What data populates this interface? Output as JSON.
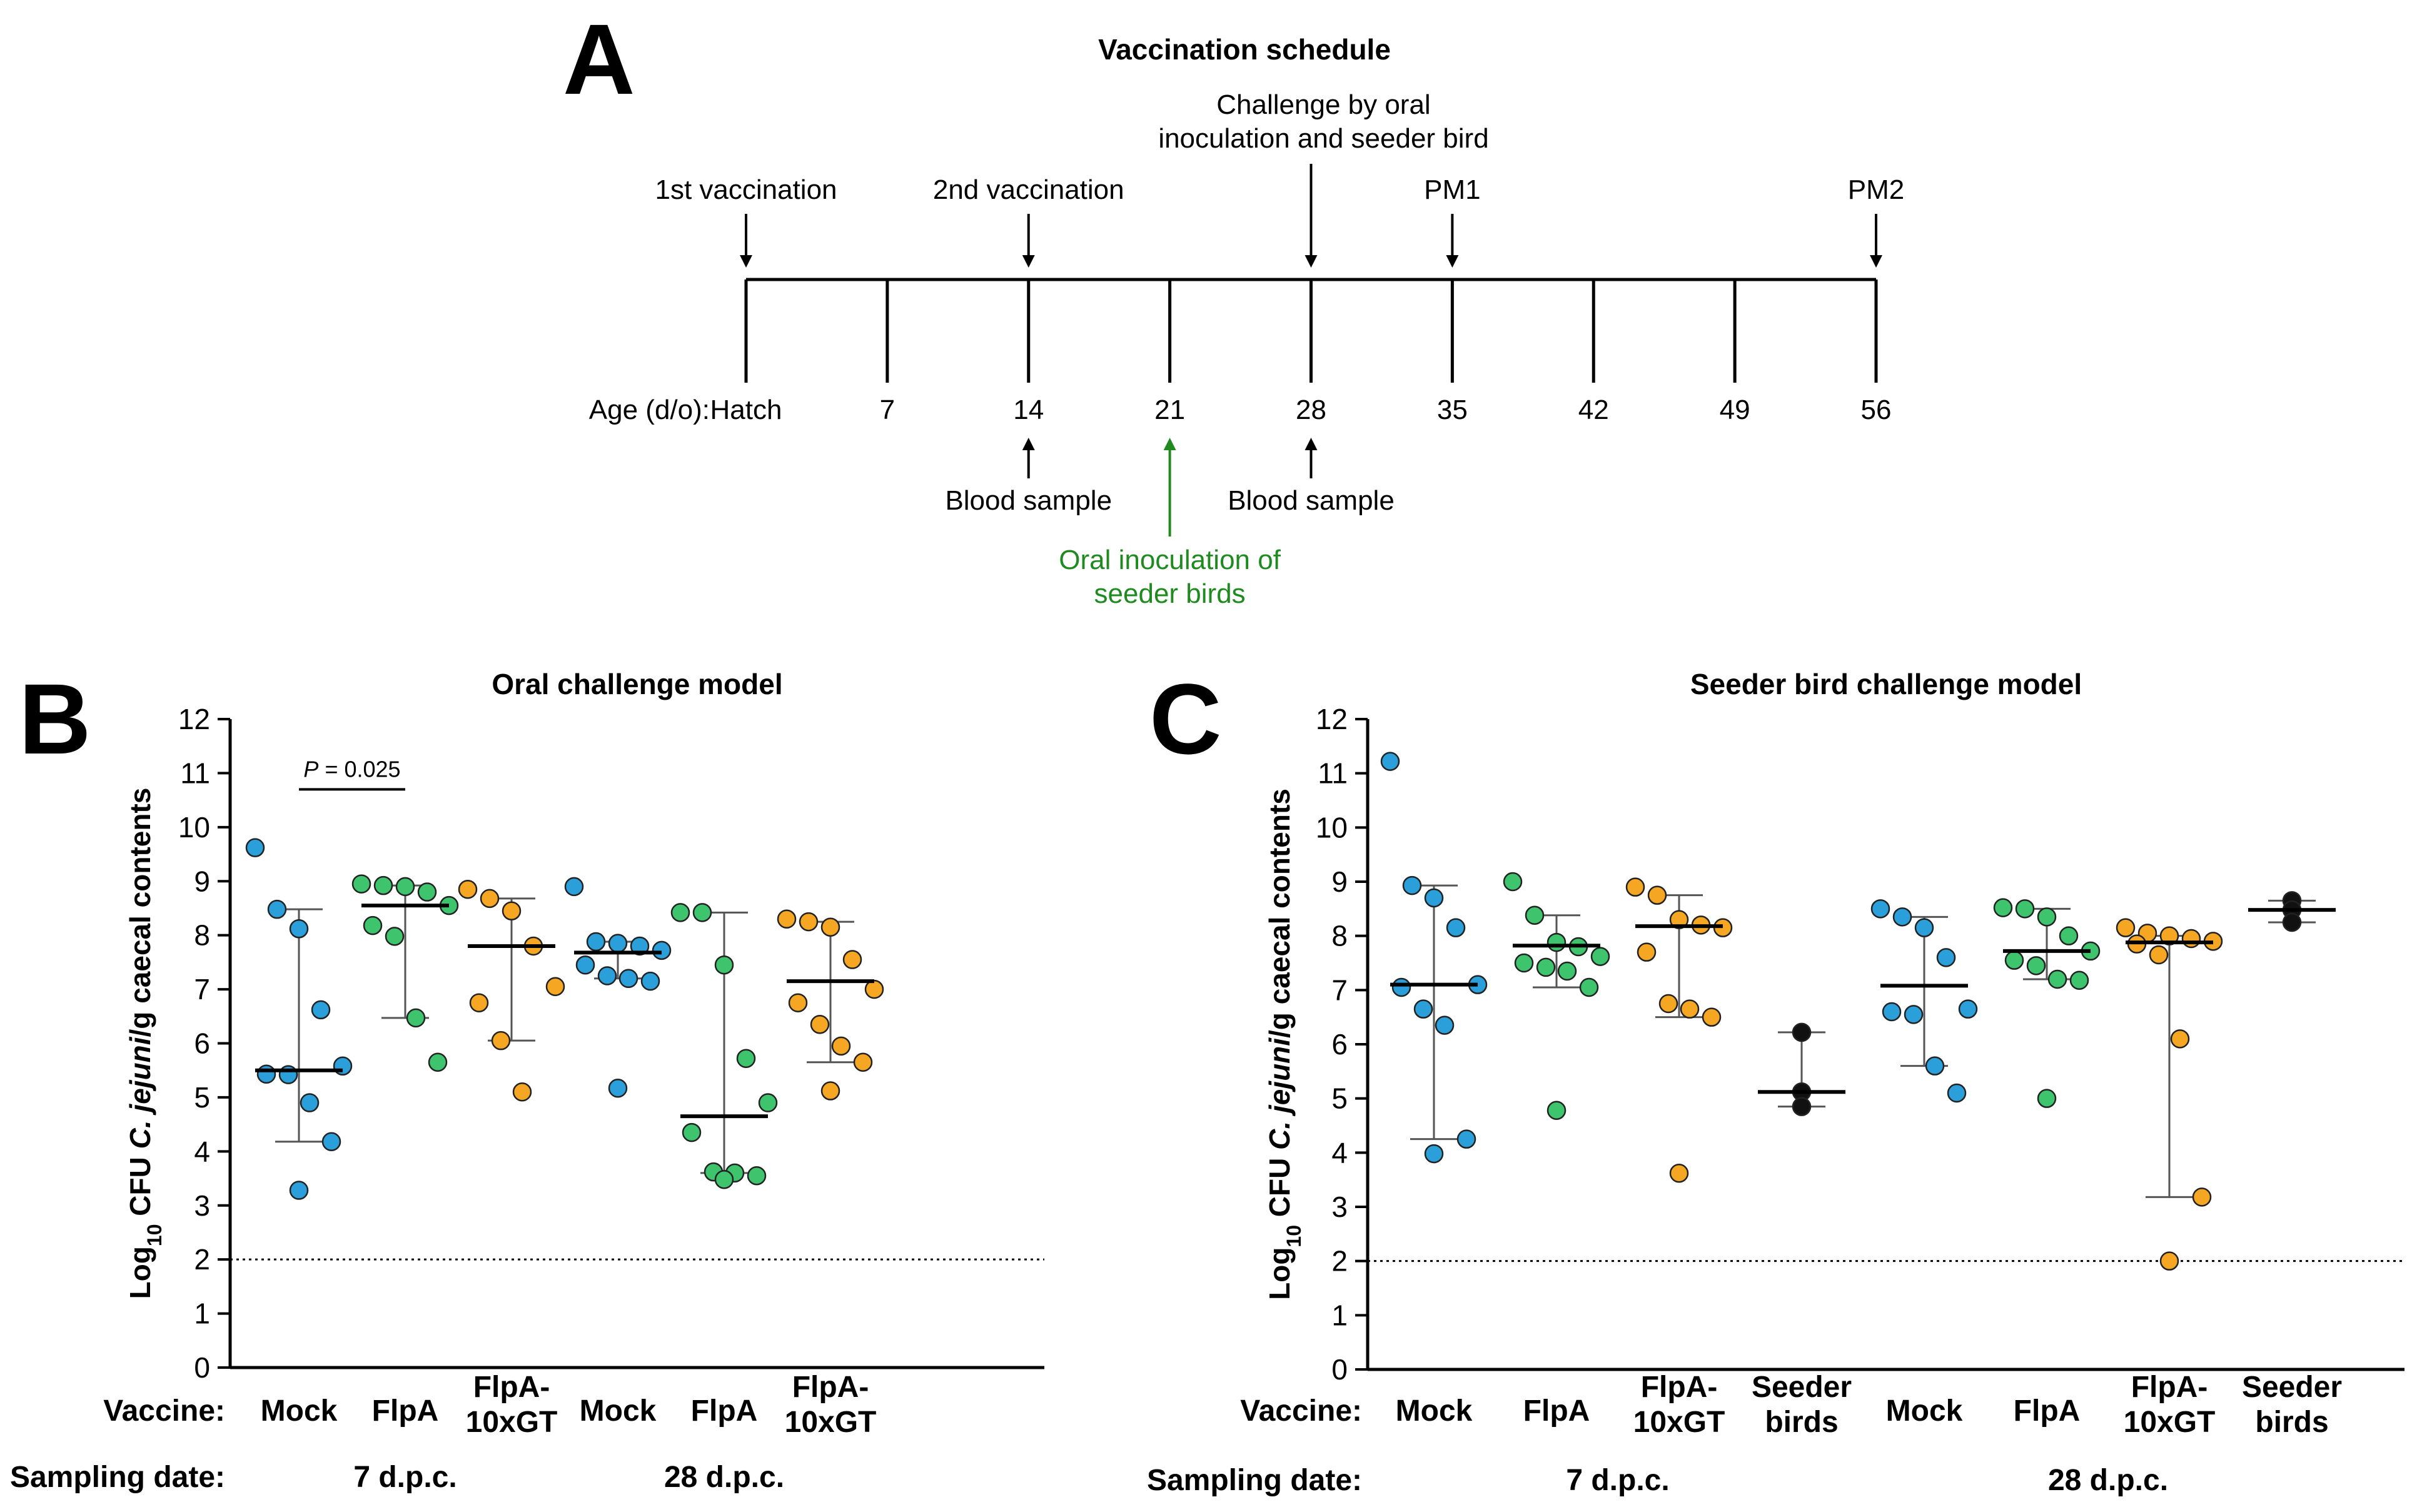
{
  "panels": {
    "a_letter": "A",
    "b_letter": "B",
    "c_letter": "C"
  },
  "timeline": {
    "title": "Vaccination schedule",
    "age_label": "Age (d/o):",
    "ages": [
      "Hatch",
      "7",
      "14",
      "21",
      "28",
      "35",
      "42",
      "49",
      "56"
    ],
    "above_events": [
      {
        "label": "1st vaccination",
        "age_index": 0
      },
      {
        "label": "2nd vaccination",
        "age_index": 2
      },
      {
        "label": "Challenge by oral",
        "label2": "inoculation and seeder bird",
        "age_index": 4
      },
      {
        "label": "PM1",
        "age_index": 5
      },
      {
        "label": "PM2",
        "age_index": 8
      }
    ],
    "below_events": [
      {
        "label": "Blood sample",
        "age_index": 2
      },
      {
        "label": "Oral inoculation of",
        "label2": "seeder birds",
        "age_index": 3,
        "color": "#1f8a1f"
      },
      {
        "label": "Blood sample",
        "age_index": 4
      }
    ]
  },
  "chart_data": [
    {
      "type": "scatter",
      "id": "B",
      "title": "Oral challenge model",
      "ylabel_prefix": "Log",
      "ylabel_sub": "10",
      "ylabel_mid": " CFU ",
      "ylabel_italic": "C. jejuni",
      "ylabel_suffix": "/g caecal contents",
      "ylim": [
        0,
        12
      ],
      "yticks": [
        "0",
        "1",
        "2",
        "3",
        "4",
        "5",
        "6",
        "7",
        "8",
        "9",
        "10",
        "11",
        "12"
      ],
      "detection_limit": 2,
      "row_labels": {
        "vaccine": "Vaccine:",
        "sampling": "Sampling date:"
      },
      "date_groups": [
        {
          "label": "7 d.p.c.",
          "from": 0,
          "to": 2
        },
        {
          "label": "28 d.p.c.",
          "from": 3,
          "to": 5
        }
      ],
      "annotation": {
        "italic": "P",
        "text": " = 0.025",
        "from": 0,
        "to": 1,
        "y": 10.7
      },
      "groups": [
        {
          "label": "Mock",
          "label2": "",
          "color": "#2b9fd9",
          "median": 5.5,
          "q1": 4.18,
          "q3": 8.48,
          "values": [
            9.62,
            8.48,
            8.12,
            6.62,
            5.58,
            5.43,
            5.42,
            4.9,
            4.18,
            3.28
          ]
        },
        {
          "label": "FlpA",
          "label2": "",
          "color": "#3ec46d",
          "median": 8.55,
          "q1": 6.47,
          "q3": 8.92,
          "values": [
            8.95,
            8.92,
            8.9,
            8.8,
            8.55,
            8.18,
            7.98,
            6.47,
            5.65
          ]
        },
        {
          "label": "FlpA-",
          "label2": "10xGT",
          "color": "#f5a623",
          "median": 7.8,
          "q1": 6.05,
          "q3": 8.68,
          "values": [
            8.85,
            8.68,
            8.45,
            7.8,
            7.05,
            6.75,
            6.05,
            5.1
          ]
        },
        {
          "label": "Mock",
          "label2": "",
          "color": "#2b9fd9",
          "median": 7.68,
          "q1": 7.2,
          "q3": 7.88,
          "values": [
            8.9,
            7.88,
            7.85,
            7.8,
            7.72,
            7.45,
            7.25,
            7.2,
            7.15,
            5.17
          ]
        },
        {
          "label": "FlpA",
          "label2": "",
          "color": "#3ec46d",
          "median": 4.65,
          "q1": 3.6,
          "q3": 8.42,
          "values": [
            8.42,
            8.42,
            7.45,
            5.72,
            4.9,
            4.35,
            3.62,
            3.6,
            3.55,
            3.48
          ]
        },
        {
          "label": "FlpA-",
          "label2": "10xGT",
          "color": "#f5a623",
          "median": 7.15,
          "q1": 5.65,
          "q3": 8.25,
          "values": [
            8.3,
            8.25,
            8.15,
            7.55,
            7.0,
            6.75,
            6.35,
            5.95,
            5.65,
            5.12
          ]
        }
      ]
    },
    {
      "type": "scatter",
      "id": "C",
      "title": "Seeder bird challenge model",
      "ylabel_prefix": "Log",
      "ylabel_sub": "10",
      "ylabel_mid": " CFU ",
      "ylabel_italic": "C. jejuni",
      "ylabel_suffix": "/g caecal contents",
      "ylim": [
        0,
        12
      ],
      "yticks": [
        "0",
        "1",
        "2",
        "3",
        "4",
        "5",
        "6",
        "7",
        "8",
        "9",
        "10",
        "11",
        "12"
      ],
      "detection_limit": 2,
      "row_labels": {
        "vaccine": "Vaccine:",
        "sampling": "Sampling date:"
      },
      "date_groups": [
        {
          "label": "7 d.p.c.",
          "from": 0,
          "to": 3
        },
        {
          "label": "28 d.p.c.",
          "from": 4,
          "to": 7
        }
      ],
      "groups": [
        {
          "label": "Mock",
          "label2": "",
          "color": "#2b9fd9",
          "median": 7.1,
          "q1": 4.25,
          "q3": 8.93,
          "values": [
            11.22,
            8.93,
            8.7,
            8.15,
            7.1,
            7.05,
            6.65,
            6.35,
            4.25,
            3.98
          ]
        },
        {
          "label": "FlpA",
          "label2": "",
          "color": "#3ec46d",
          "median": 7.82,
          "q1": 7.05,
          "q3": 8.38,
          "values": [
            9.0,
            8.38,
            7.88,
            7.8,
            7.62,
            7.5,
            7.42,
            7.35,
            7.05,
            4.78
          ]
        },
        {
          "label": "FlpA-",
          "label2": "10xGT",
          "color": "#f5a623",
          "median": 8.18,
          "q1": 6.5,
          "q3": 8.75,
          "values": [
            8.9,
            8.75,
            8.3,
            8.2,
            8.15,
            7.7,
            6.75,
            6.65,
            6.5,
            3.62
          ]
        },
        {
          "label": "Seeder",
          "label2": "birds",
          "color": "#111111",
          "median": 5.12,
          "q1": 4.85,
          "q3": 6.22,
          "values": [
            6.22,
            5.12,
            4.85
          ]
        },
        {
          "label": "Mock",
          "label2": "",
          "color": "#2b9fd9",
          "median": 7.08,
          "q1": 5.6,
          "q3": 8.35,
          "values": [
            8.5,
            8.35,
            8.15,
            7.6,
            6.65,
            6.6,
            6.55,
            5.6,
            5.1
          ]
        },
        {
          "label": "FlpA",
          "label2": "",
          "color": "#3ec46d",
          "median": 7.72,
          "q1": 7.2,
          "q3": 8.5,
          "values": [
            8.52,
            8.5,
            8.35,
            8.0,
            7.72,
            7.55,
            7.45,
            7.2,
            7.18,
            5.0
          ]
        },
        {
          "label": "FlpA-",
          "label2": "10xGT",
          "color": "#f5a623",
          "median": 7.88,
          "q1": 3.18,
          "q3": 8.0,
          "values": [
            8.15,
            8.05,
            8.0,
            7.95,
            7.9,
            7.85,
            7.65,
            6.1,
            3.18,
            2.0
          ]
        },
        {
          "label": "Seeder",
          "label2": "birds",
          "color": "#111111",
          "median": 8.48,
          "q1": 8.25,
          "q3": 8.65,
          "values": [
            8.65,
            8.48,
            8.25
          ]
        }
      ]
    }
  ]
}
